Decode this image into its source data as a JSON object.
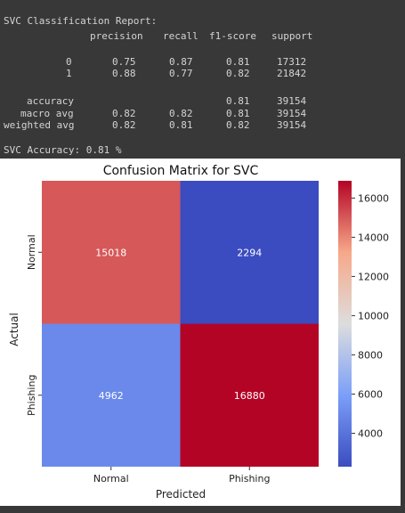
{
  "report": {
    "title": "SVC Classification Report:",
    "columns": [
      "precision",
      "recall",
      "f1-score",
      "support"
    ],
    "rows": [
      {
        "label": "0",
        "precision": "0.75",
        "recall": "0.87",
        "f1": "0.81",
        "support": "17312"
      },
      {
        "label": "1",
        "precision": "0.88",
        "recall": "0.77",
        "f1": "0.82",
        "support": "21842"
      }
    ],
    "accuracy": {
      "label": "accuracy",
      "f1": "0.81",
      "support": "39154"
    },
    "avgs": [
      {
        "label": "macro avg",
        "precision": "0.82",
        "recall": "0.82",
        "f1": "0.81",
        "support": "39154"
      },
      {
        "label": "weighted avg",
        "precision": "0.82",
        "recall": "0.81",
        "f1": "0.82",
        "support": "39154"
      }
    ],
    "accuracy_line": "SVC Accuracy: 0.81 %"
  },
  "chart_data": {
    "type": "heatmap",
    "title": "Confusion Matrix for SVC",
    "xlabel": "Predicted",
    "ylabel": "Actual",
    "x_categories": [
      "Normal",
      "Phishing"
    ],
    "y_categories": [
      "Normal",
      "Phishing"
    ],
    "values": [
      [
        15018,
        2294
      ],
      [
        4962,
        16880
      ]
    ],
    "colormap": "coolwarm",
    "colorbar": {
      "min": 2294,
      "max": 16880,
      "ticks": [
        4000,
        6000,
        8000,
        10000,
        12000,
        14000,
        16000
      ]
    }
  }
}
